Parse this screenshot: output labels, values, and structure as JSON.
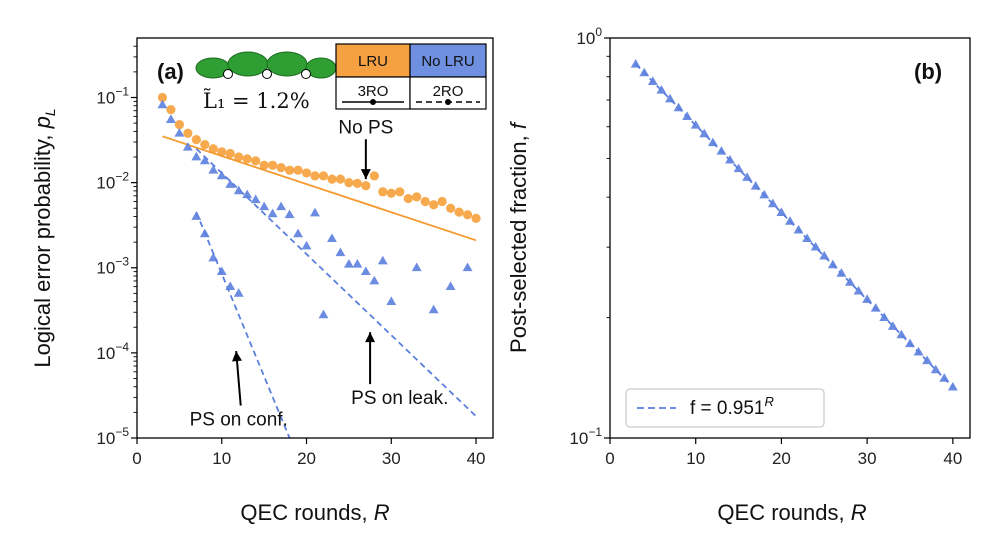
{
  "chart_data": [
    {
      "panel": "(a)",
      "type": "scatter",
      "yscale": "log",
      "xlabel": "QEC rounds, R",
      "ylabel": "Logical error probability, p_L",
      "xlim": [
        0,
        42
      ],
      "ylim": [
        1e-05,
        0.5
      ],
      "xticks": [
        0,
        10,
        20,
        30,
        40
      ],
      "xtick_labels": [
        "0",
        "10",
        "20",
        "30",
        "40"
      ],
      "ytick_labels": [
        {
          "v": 1e-05,
          "base": "10",
          "exp": "−5"
        },
        {
          "v": 0.0001,
          "base": "10",
          "exp": "−4"
        },
        {
          "v": 0.001,
          "base": "10",
          "exp": "−3"
        },
        {
          "v": 0.01,
          "base": "10",
          "exp": "−2"
        },
        {
          "v": 0.1,
          "base": "10",
          "exp": "−1"
        }
      ],
      "series": [
        {
          "name": "No PS",
          "color": "#f59a2e",
          "marker": "circle",
          "x": [
            3,
            4,
            5,
            6,
            7,
            8,
            9,
            10,
            11,
            12,
            13,
            14,
            15,
            16,
            17,
            18,
            19,
            20,
            21,
            22,
            23,
            24,
            25,
            26,
            27,
            28,
            29,
            30,
            31,
            32,
            33,
            34,
            35,
            36,
            37,
            38,
            39,
            40
          ],
          "y": [
            0.1,
            0.072,
            0.048,
            0.038,
            0.032,
            0.028,
            0.025,
            0.023,
            0.022,
            0.02,
            0.019,
            0.018,
            0.016,
            0.016,
            0.015,
            0.014,
            0.014,
            0.013,
            0.012,
            0.012,
            0.011,
            0.011,
            0.01,
            0.0098,
            0.0092,
            0.012,
            0.0078,
            0.0075,
            0.0078,
            0.0065,
            0.0068,
            0.006,
            0.0055,
            0.006,
            0.005,
            0.0045,
            0.0042,
            0.0038
          ]
        },
        {
          "name": "PS on leak.",
          "color": "#5b7fde",
          "marker": "triangle",
          "x": [
            3,
            4,
            5,
            6,
            7,
            8,
            9,
            10,
            11,
            12,
            13,
            14,
            15,
            16,
            17,
            18,
            19,
            20,
            21,
            22,
            23,
            24,
            25,
            26,
            27,
            28,
            29,
            30,
            33,
            35,
            37,
            39
          ],
          "y": [
            0.082,
            0.055,
            0.038,
            0.026,
            0.02,
            0.018,
            0.014,
            0.012,
            0.0095,
            0.008,
            0.0072,
            0.0063,
            0.0052,
            0.0043,
            0.0052,
            0.0042,
            0.0025,
            0.0018,
            0.0044,
            0.00028,
            0.0022,
            0.0015,
            0.0011,
            0.0011,
            0.0009,
            0.0007,
            0.0012,
            0.0004,
            0.001,
            0.00032,
            0.0006,
            0.001
          ]
        },
        {
          "name": "PS on conf.",
          "color": "#5b7fde",
          "marker": "triangle",
          "x": [
            7,
            8,
            9,
            10,
            11,
            12
          ],
          "y": [
            0.004,
            0.0025,
            0.0013,
            0.0009,
            0.0006,
            0.0005
          ]
        }
      ],
      "fits": [
        {
          "name": "No PS fit",
          "color": "#f59a2e",
          "style": "solid",
          "x": [
            3,
            40
          ],
          "y": [
            0.035,
            0.0021
          ]
        },
        {
          "name": "PS on leak. fit",
          "color": "#5b7fde",
          "style": "dashed",
          "x": [
            7,
            40
          ],
          "y": [
            0.025,
            1.8e-05
          ]
        },
        {
          "name": "PS on conf. fit",
          "color": "#5b7fde",
          "style": "dashed",
          "x": [
            7,
            18
          ],
          "y": [
            0.0045,
            1e-05
          ]
        }
      ],
      "annotations": [
        {
          "text": "No PS",
          "x": 27,
          "y": 0.038,
          "arrow_to": [
            27,
            0.011
          ]
        },
        {
          "text": "PS on leak.",
          "x": 31,
          "y": 2.5e-05,
          "arrow_to": [
            27.5,
            0.000175
          ]
        },
        {
          "text": "PS on conf.",
          "x": 12,
          "y": 1.4e-05,
          "arrow_to": [
            11.7,
            0.000105
          ]
        }
      ],
      "inset_legend": {
        "lru_label": "LRU",
        "no_lru_label": "No LRU",
        "ro3_label": "3RO",
        "ro2_label": "2RO",
        "lru_color": "#f5a142",
        "no_lru_color": "#6f8fe0",
        "leakage_label": "L̃₁ = 1.2%",
        "qubit_color": "#2f9e33"
      }
    },
    {
      "panel": "(b)",
      "type": "scatter",
      "yscale": "log",
      "xlabel": "QEC rounds, R",
      "ylabel": "Post-selected fraction, f",
      "xlim": [
        0,
        42
      ],
      "ylim": [
        0.1,
        1.0
      ],
      "xticks": [
        0,
        10,
        20,
        30,
        40
      ],
      "xtick_labels": [
        "0",
        "10",
        "20",
        "30",
        "40"
      ],
      "ytick_labels": [
        {
          "v": 0.1,
          "base": "10",
          "exp": "−1"
        },
        {
          "v": 1.0,
          "base": "10",
          "exp": "0"
        }
      ],
      "fit_base": 0.951,
      "fit_x_range": [
        3,
        40
      ],
      "legend": {
        "prefix": "f = 0.951",
        "sup": "R"
      },
      "series": [
        {
          "name": "post-selected fraction",
          "color": "#5b7fde",
          "marker": "triangle",
          "x": [
            3,
            4,
            5,
            6,
            7,
            8,
            9,
            10,
            11,
            12,
            13,
            14,
            15,
            16,
            17,
            18,
            19,
            20,
            21,
            22,
            23,
            24,
            25,
            26,
            27,
            28,
            29,
            30,
            31,
            32,
            33,
            34,
            35,
            36,
            37,
            38,
            39,
            40
          ],
          "y": [
            0.86,
            0.818,
            0.778,
            0.74,
            0.704,
            0.669,
            0.636,
            0.605,
            0.576,
            0.547,
            0.521,
            0.495,
            0.471,
            0.448,
            0.426,
            0.405,
            0.385,
            0.366,
            0.348,
            0.331,
            0.315,
            0.3,
            0.285,
            0.271,
            0.258,
            0.245,
            0.233,
            0.222,
            0.211,
            0.2,
            0.19,
            0.181,
            0.172,
            0.164,
            0.156,
            0.148,
            0.141,
            0.134
          ]
        }
      ]
    }
  ]
}
